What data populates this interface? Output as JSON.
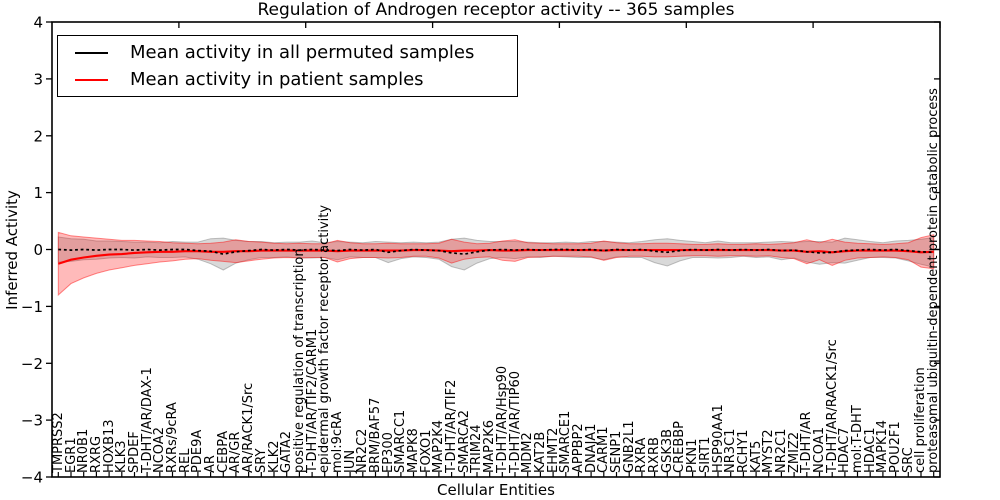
{
  "figure": {
    "title": "Regulation of Androgen receptor activity -- 365 samples",
    "xlabel": "Cellular Entities",
    "ylabel": "Inferred Activity",
    "legend": [
      {
        "label": "Mean activity in all permuted samples",
        "color": "#000000"
      },
      {
        "label": "Mean activity in patient samples",
        "color": "#ff0000"
      }
    ]
  },
  "chart_data": {
    "type": "line",
    "title": "Regulation of Androgen receptor activity -- 365 samples",
    "xlabel": "Cellular Entities",
    "ylabel": "Inferred Activity",
    "ylim": [
      -4,
      4
    ],
    "yticks": [
      4,
      3,
      2,
      1,
      0,
      -1,
      -2,
      -3,
      -4
    ],
    "grid": false,
    "legend_position": "upper left",
    "categories": [
      "TMPRSS2",
      "EGR1",
      "NR0B1",
      "RXRG",
      "HOXB13",
      "KLK3",
      "SPDEF",
      "T-DHT/AR/DAX-1",
      "NCOA2",
      "RXRs/9cRA",
      "REL",
      "PDE9A",
      "AR",
      "CEBPA",
      "AR/GR",
      "AR/RACK1/Src",
      "SRY",
      "KLK2",
      "GATA2",
      "positive regulation of transcription",
      "T-DHT/AR/TIF2/CARM1",
      "epidermal growth factor receptor activity",
      "mol:9cRA",
      "JUN",
      "NR2C2",
      "BRM/BAF57",
      "EP300",
      "SMARCC1",
      "MAPK8",
      "FOXO1",
      "MAP2K4",
      "T-DHT/AR/TIF2",
      "SMARCA2",
      "TRIM24",
      "MAP2K6",
      "T-DHT/AR/Hsp90",
      "T-DHT/AR/TIP60",
      "MDM2",
      "KAT2B",
      "EHMT2",
      "SMARCE1",
      "APPBP2",
      "DNAJA1",
      "CARM1",
      "SENP1",
      "GNB2L1",
      "RXRA",
      "RXRB",
      "GSK3B",
      "CREBBP",
      "PKN1",
      "SIRT1",
      "HSP90AA1",
      "NR3C1",
      "RCHY1",
      "KAT5",
      "MYST2",
      "NR2C1",
      "ZMIZ2",
      "T-DHT/AR",
      "NCOA1",
      "T-DHT/AR/RACK1/Src",
      "HDAC7",
      "mol:T-DHT",
      "HDAC1",
      "MAPK14",
      "POU2F1",
      "SRC",
      "cell proliferation",
      "proteasomal ubiquitin-dependent protein catabolic process"
    ],
    "series": [
      {
        "name": "Mean activity in all permuted samples",
        "color": "#000000",
        "style": "dashed",
        "band_color": "#808080",
        "band_opacity": 0.3,
        "mean": [
          0,
          -0.01,
          0,
          -0.01,
          0,
          0,
          -0.01,
          0,
          -0.01,
          0,
          0,
          -0.02,
          -0.03,
          -0.08,
          -0.04,
          -0.02,
          0,
          -0.01,
          0,
          -0.01,
          0,
          -0.01,
          -0.02,
          0,
          -0.01,
          0,
          -0.05,
          -0.02,
          0,
          -0.01,
          -0.02,
          -0.06,
          -0.08,
          -0.04,
          -0.01,
          0,
          -0.01,
          0,
          -0.01,
          0,
          0,
          -0.01,
          0,
          -0.02,
          0,
          -0.01,
          0,
          -0.03,
          -0.05,
          -0.02,
          0,
          -0.01,
          0,
          -0.01,
          0,
          -0.01,
          0,
          -0.02,
          -0.01,
          -0.04,
          -0.06,
          -0.05,
          -0.02,
          -0.01,
          0,
          -0.01,
          0,
          -0.02,
          -0.04,
          -0.05
        ],
        "std": [
          0.22,
          0.2,
          0.18,
          0.16,
          0.15,
          0.14,
          0.14,
          0.13,
          0.13,
          0.14,
          0.13,
          0.15,
          0.22,
          0.28,
          0.2,
          0.16,
          0.14,
          0.13,
          0.13,
          0.14,
          0.15,
          0.13,
          0.16,
          0.13,
          0.13,
          0.14,
          0.18,
          0.14,
          0.13,
          0.13,
          0.15,
          0.24,
          0.28,
          0.2,
          0.15,
          0.14,
          0.15,
          0.13,
          0.13,
          0.12,
          0.13,
          0.13,
          0.14,
          0.16,
          0.13,
          0.13,
          0.14,
          0.2,
          0.24,
          0.18,
          0.14,
          0.13,
          0.15,
          0.13,
          0.12,
          0.13,
          0.13,
          0.16,
          0.14,
          0.18,
          0.2,
          0.18,
          0.22,
          0.18,
          0.14,
          0.13,
          0.15,
          0.18,
          0.22,
          0.26
        ]
      },
      {
        "name": "Mean activity in patient samples",
        "color": "#ff0000",
        "style": "solid",
        "band_color": "#ff0000",
        "band_opacity": 0.27,
        "mean": [
          -0.25,
          -0.18,
          -0.14,
          -0.11,
          -0.09,
          -0.08,
          -0.06,
          -0.05,
          -0.04,
          -0.04,
          -0.03,
          -0.03,
          -0.04,
          -0.04,
          -0.03,
          -0.03,
          -0.02,
          -0.02,
          -0.02,
          -0.02,
          -0.02,
          -0.02,
          -0.03,
          -0.02,
          -0.02,
          -0.02,
          -0.02,
          -0.02,
          -0.01,
          -0.01,
          -0.02,
          -0.03,
          -0.02,
          -0.02,
          -0.01,
          -0.02,
          -0.02,
          -0.01,
          -0.01,
          -0.01,
          -0.01,
          -0.01,
          -0.01,
          -0.02,
          -0.01,
          -0.01,
          -0.01,
          -0.01,
          -0.01,
          -0.01,
          -0.01,
          -0.01,
          -0.01,
          -0.01,
          -0.01,
          -0.01,
          -0.01,
          -0.02,
          -0.02,
          -0.04,
          -0.03,
          -0.05,
          -0.03,
          -0.02,
          -0.02,
          -0.02,
          -0.02,
          -0.03,
          -0.05,
          -0.04
        ],
        "std": [
          0.55,
          0.42,
          0.36,
          0.31,
          0.27,
          0.24,
          0.22,
          0.2,
          0.18,
          0.16,
          0.14,
          0.13,
          0.15,
          0.17,
          0.2,
          0.17,
          0.15,
          0.13,
          0.12,
          0.13,
          0.12,
          0.12,
          0.19,
          0.14,
          0.12,
          0.12,
          0.13,
          0.12,
          0.11,
          0.11,
          0.13,
          0.21,
          0.15,
          0.12,
          0.12,
          0.17,
          0.19,
          0.13,
          0.12,
          0.11,
          0.11,
          0.11,
          0.12,
          0.17,
          0.13,
          0.11,
          0.11,
          0.12,
          0.12,
          0.11,
          0.1,
          0.1,
          0.11,
          0.1,
          0.1,
          0.11,
          0.1,
          0.12,
          0.14,
          0.21,
          0.15,
          0.23,
          0.16,
          0.13,
          0.12,
          0.11,
          0.12,
          0.15,
          0.26,
          0.3
        ]
      }
    ]
  }
}
